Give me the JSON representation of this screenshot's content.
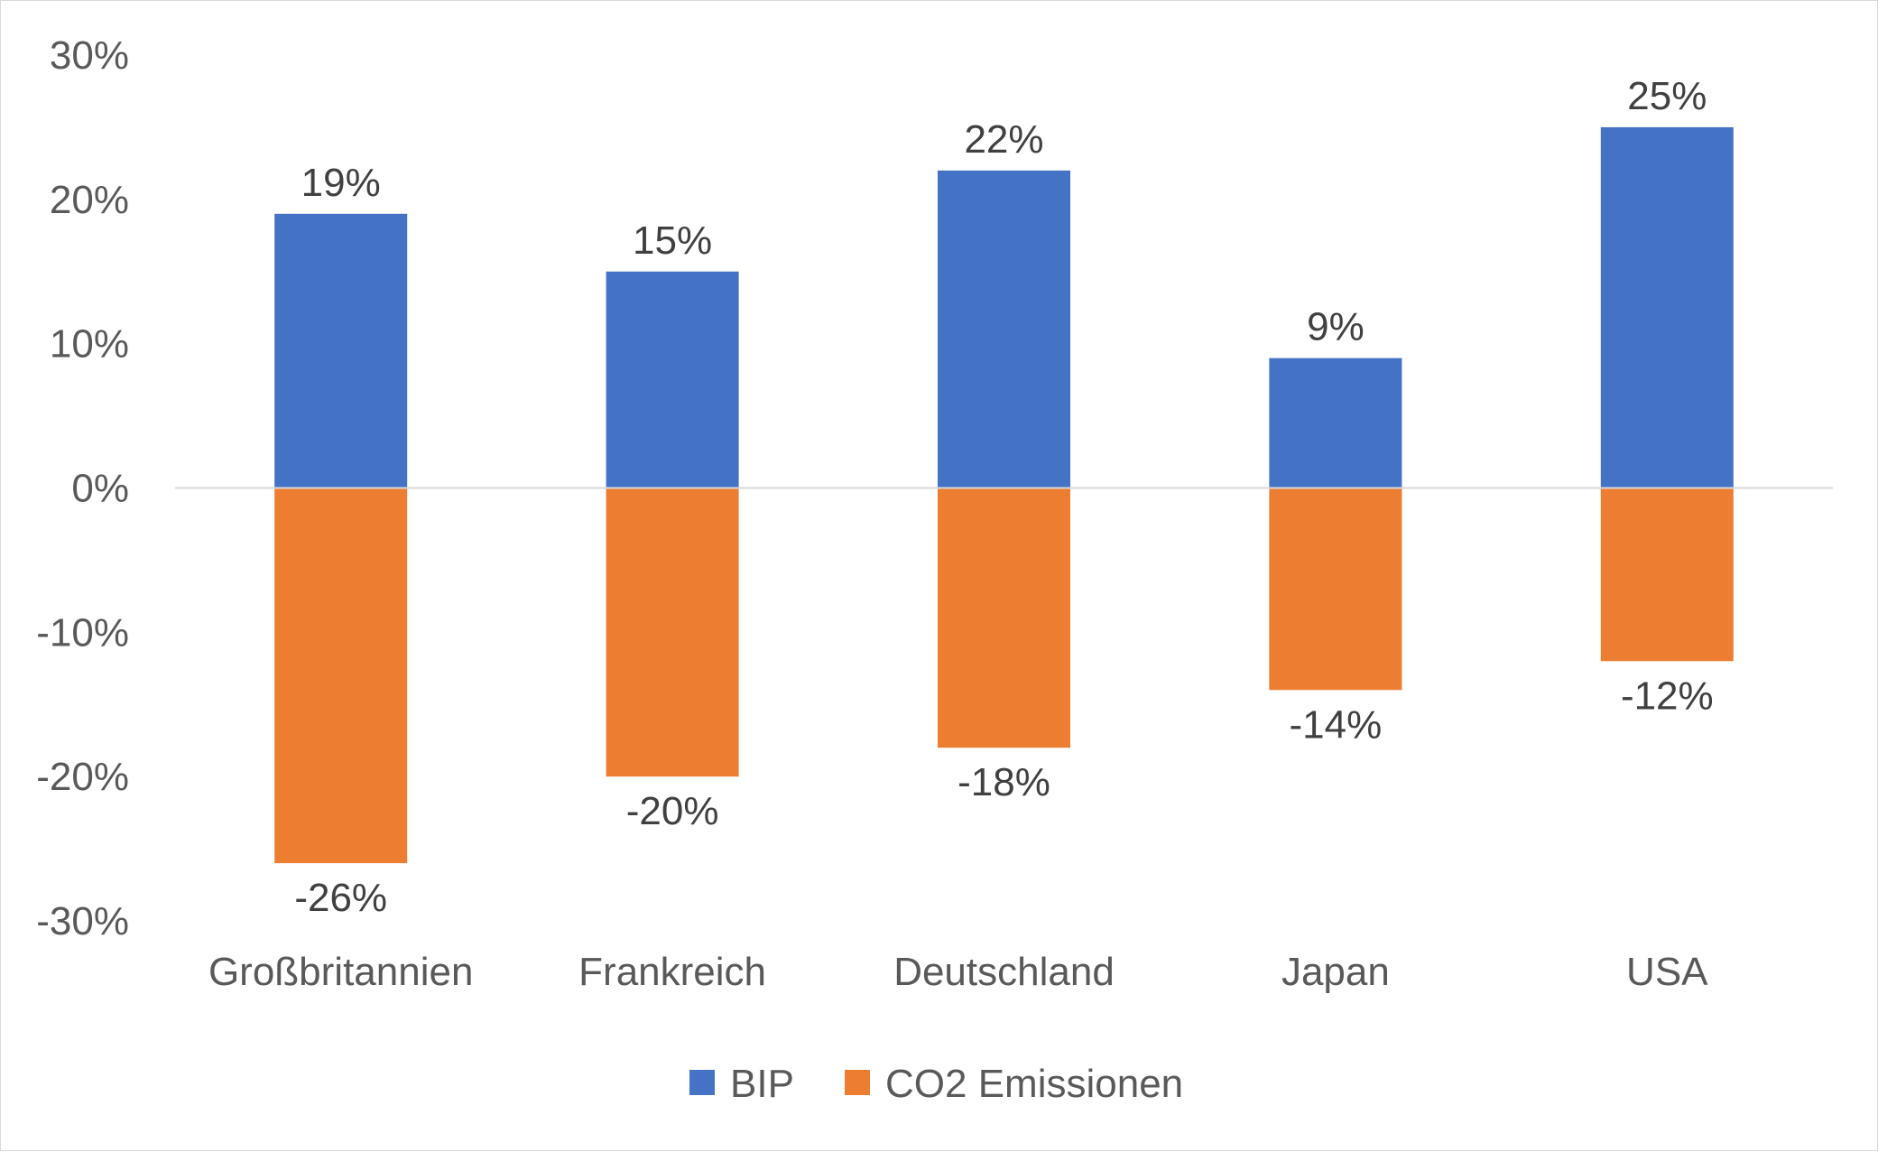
{
  "chart_data": {
    "type": "bar",
    "categories": [
      "Großbritannien",
      "Frankreich",
      "Deutschland",
      "Japan",
      "USA"
    ],
    "series": [
      {
        "name": "BIP",
        "color": "#4472c4",
        "values": [
          19,
          15,
          22,
          9,
          25
        ],
        "labels": [
          "19%",
          "15%",
          "22%",
          "9%",
          "25%"
        ]
      },
      {
        "name": "CO2 Emissionen",
        "color": "#ed7d31",
        "values": [
          -26,
          -20,
          -18,
          -14,
          -12
        ],
        "labels": [
          "-26%",
          "-20%",
          "-18%",
          "-14%",
          "-12%"
        ]
      }
    ],
    "stacked": true,
    "ylim": [
      -30,
      30
    ],
    "yticks": [
      30,
      20,
      10,
      0,
      -10,
      -20,
      -30
    ],
    "ytick_labels": [
      "30%",
      "20%",
      "10%",
      "0%",
      "-10%",
      "-20%",
      "-30%"
    ],
    "xlabel": "",
    "ylabel": "",
    "title": "",
    "grid": false,
    "legend_position": "bottom"
  }
}
